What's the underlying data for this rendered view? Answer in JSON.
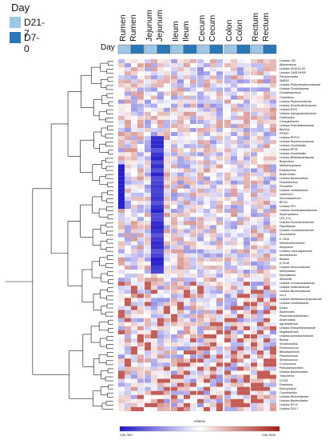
{
  "legend": {
    "title": "Day",
    "items": [
      {
        "label": "D21-7",
        "color": "#9ec6e6"
      },
      {
        "label": "D7-0",
        "color": "#2b78b8"
      }
    ]
  },
  "columns": [
    {
      "label": "Rumen\nRumen"
    },
    {
      "label": "Jejunum\nJejunum"
    },
    {
      "label": "Ileum\nIleum"
    },
    {
      "label": "Cecum\nCecum"
    },
    {
      "label": "Colon\nColon"
    },
    {
      "label": "Rectum\nRectum"
    }
  ],
  "day_row_label": "Day",
  "scale": {
    "label": "relative",
    "min_label": "row min",
    "max_label": "row max",
    "colors": [
      "#1c14c8",
      "#ffffff",
      "#a81810"
    ]
  },
  "rows": [
    "Unclass Y52",
    "Akkermansia",
    "Unclass ML615J-28",
    "Unclass GMD14H09",
    "Paraprevotella",
    "SMB53",
    "Unclass Peptostreptococcaceae",
    "Unclass Clostridiaceae",
    "Dehalobacterium",
    "Clostridium",
    "Unclass Peptococcaceae",
    "Unclass Desulfovibrionaceae",
    "Unclass RS11",
    "Unclass Alphaproteobacteria",
    "Oscillospira",
    "Campylobacter",
    "Unclass Prolixibacteraceae",
    "Bacillus",
    "RFN20",
    "Unclass RFP12",
    "Unclass Ruminococcaceae",
    "Unclass Clostridiales",
    "Unclass RF39",
    "Unclass Clostridiales",
    "Unclass Bifidobacteriaceae",
    "Butyrivibrio",
    "Methanosphaera",
    "Desulfovibrio",
    "Anaerofustis",
    "Unclass Bacteroidales",
    "Desulfobulbus",
    "Prevotella",
    "Unclass Victivallaceae",
    "vadinCA11",
    "Succiniclasticum",
    "BF311",
    "Unclass SP1",
    "Unclass Acholeplasmataceae",
    "Anaeroplasma",
    "LTA_E11",
    "Unclass Elusimicrobiaceae",
    "Paludibacter",
    "Unclass Coriobacteriaceae",
    "Succinivibrio",
    "E-7N15",
    "Methanobrevibacter",
    "Allopurinol",
    "Unclass Lachnospiraceae",
    "Acinetobacter",
    "Butasia",
    "p-75-a5",
    "Unclass Aerococcaceae",
    "Methylobium",
    "Mycoplasma",
    "Weissella",
    "Unclass Comamonadaceae",
    "Unclass Veillonellaceae",
    "Unclass Bacteroidaceae",
    "rc4-4",
    "Unclass Methanocorpusculaceae",
    "Unclass Clostridiaceae",
    "Dorea",
    "Bacteroides",
    "Phascolarctobacterium",
    "Anaerovibrio",
    "Agrobacterium",
    "Unclass Erysipelotrichaceae",
    "Mogibacterium",
    "Unclass Acetobacteraceae",
    "Blautia",
    "Shuttleworthia",
    "Ruminococcus",
    "Bifidobacterium",
    "Pseudomonas",
    "Streptococcus",
    "Cronococcus",
    "Pseudobutyrivibrio",
    "Unclass Bacteroidales",
    "Treponema",
    "CF231",
    "Roseburia",
    "Epulopiscium",
    "Coprobacillus",
    "Unclass Rikenellaceae",
    "Unclass Bacteroidales",
    "Unclass RF16",
    "Unclass S24-7"
  ]
}
